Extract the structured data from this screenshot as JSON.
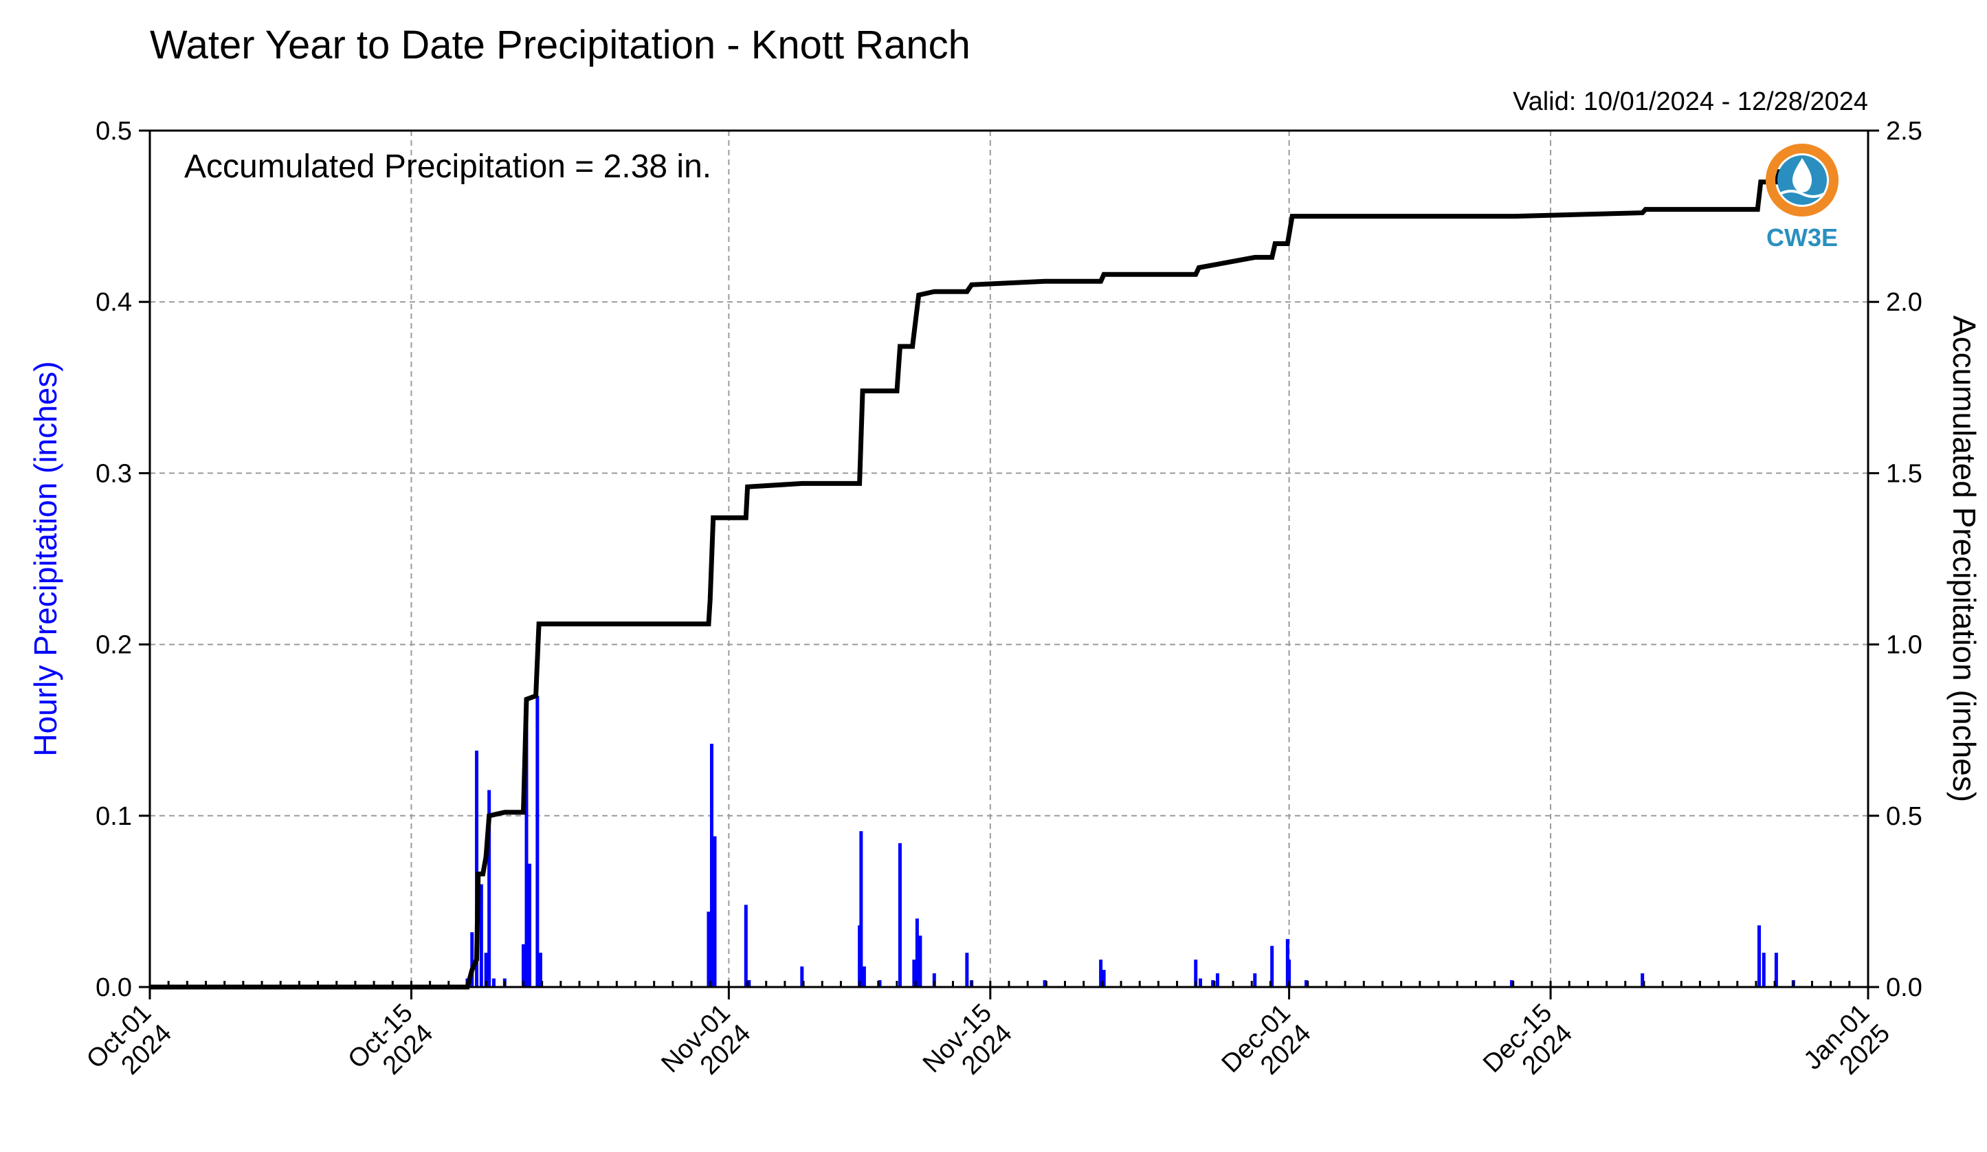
{
  "title": "Water Year to Date Precipitation - Knott Ranch",
  "valid": "Valid: 10/01/2024 - 12/28/2024",
  "annotation": "Accumulated Precipitation = 2.38 in.",
  "logo": {
    "text": "CW3E",
    "color": "#2a8fc0",
    "accent": "#f08a24"
  },
  "chart_data": {
    "type": "bar+line",
    "xlabel": "",
    "ylabel_left": "Hourly Precipitation (inches)",
    "ylabel_right": "Accumulated Precipitation (inches)",
    "xlim": [
      "2024-10-01",
      "2025-01-01"
    ],
    "ylim_left": [
      0,
      0.5
    ],
    "ylim_right": [
      0,
      2.5
    ],
    "grid": true,
    "left_ticks": [
      "0.0",
      "0.1",
      "0.2",
      "0.3",
      "0.4",
      "0.5"
    ],
    "right_ticks": [
      "0.0",
      "0.5",
      "1.0",
      "1.5",
      "2.0",
      "2.5"
    ],
    "x_ticks": [
      {
        "date": "2024-10-01",
        "label1": "Oct-01",
        "label2": "2024"
      },
      {
        "date": "2024-10-15",
        "label1": "Oct-15",
        "label2": "2024"
      },
      {
        "date": "2024-11-01",
        "label1": "Nov-01",
        "label2": "2024"
      },
      {
        "date": "2024-11-15",
        "label1": "Nov-15",
        "label2": "2024"
      },
      {
        "date": "2024-12-01",
        "label1": "Dec-01",
        "label2": "2024"
      },
      {
        "date": "2024-12-15",
        "label1": "Dec-15",
        "label2": "2024"
      },
      {
        "date": "2025-01-01",
        "label1": "Jan-01",
        "label2": "2025"
      }
    ],
    "hourly_series": {
      "name": "Hourly Precipitation",
      "color": "#0000ff",
      "points": [
        [
          "2024-10-18T00:00",
          0.005
        ],
        [
          "2024-10-18T06:00",
          0.032
        ],
        [
          "2024-10-18T12:00",
          0.138
        ],
        [
          "2024-10-18T18:00",
          0.06
        ],
        [
          "2024-10-19T00:00",
          0.02
        ],
        [
          "2024-10-19T04:00",
          0.115
        ],
        [
          "2024-10-19T10:00",
          0.005
        ],
        [
          "2024-10-20T00:00",
          0.005
        ],
        [
          "2024-10-21T00:00",
          0.025
        ],
        [
          "2024-10-21T04:00",
          0.16
        ],
        [
          "2024-10-21T08:00",
          0.072
        ],
        [
          "2024-10-21T18:00",
          0.17
        ],
        [
          "2024-10-21T22:00",
          0.02
        ],
        [
          "2024-10-30T22:00",
          0.044
        ],
        [
          "2024-10-31T02:00",
          0.142
        ],
        [
          "2024-10-31T06:00",
          0.088
        ],
        [
          "2024-11-01T22:00",
          0.048
        ],
        [
          "2024-11-02T02:00",
          0.004
        ],
        [
          "2024-11-04T22:00",
          0.012
        ],
        [
          "2024-11-08T00:00",
          0.036
        ],
        [
          "2024-11-08T02:00",
          0.091
        ],
        [
          "2024-11-08T06:00",
          0.012
        ],
        [
          "2024-11-09T02:00",
          0.004
        ],
        [
          "2024-11-10T04:00",
          0.084
        ],
        [
          "2024-11-10T22:00",
          0.016
        ],
        [
          "2024-11-11T02:00",
          0.04
        ],
        [
          "2024-11-11T06:00",
          0.03
        ],
        [
          "2024-11-12T00:00",
          0.008
        ],
        [
          "2024-11-13T18:00",
          0.02
        ],
        [
          "2024-11-14T00:00",
          0.004
        ],
        [
          "2024-11-17T22:00",
          0.004
        ],
        [
          "2024-11-20T22:00",
          0.016
        ],
        [
          "2024-11-21T02:00",
          0.01
        ],
        [
          "2024-11-26T00:00",
          0.016
        ],
        [
          "2024-11-26T06:00",
          0.005
        ],
        [
          "2024-11-26T22:00",
          0.004
        ],
        [
          "2024-11-27T04:00",
          0.008
        ],
        [
          "2024-11-29T04:00",
          0.008
        ],
        [
          "2024-11-30T02:00",
          0.024
        ],
        [
          "2024-11-30T22:00",
          0.028
        ],
        [
          "2024-12-01T00:00",
          0.016
        ],
        [
          "2024-12-01T22:00",
          0.004
        ],
        [
          "2024-12-12T22:00",
          0.004
        ],
        [
          "2024-12-19T22:00",
          0.008
        ],
        [
          "2024-12-26T04:00",
          0.036
        ],
        [
          "2024-12-26T10:00",
          0.02
        ],
        [
          "2024-12-27T02:00",
          0.02
        ],
        [
          "2024-12-28T00:00",
          0.004
        ]
      ]
    },
    "accumulated_series": {
      "name": "Accumulated Precipitation",
      "color": "#000000",
      "points": [
        [
          "2024-10-01T00:00",
          0.0
        ],
        [
          "2024-10-18T00:00",
          0.0
        ],
        [
          "2024-10-18T06:00",
          0.05
        ],
        [
          "2024-10-18T12:00",
          0.08
        ],
        [
          "2024-10-18T14:00",
          0.33
        ],
        [
          "2024-10-18T20:00",
          0.33
        ],
        [
          "2024-10-19T00:00",
          0.38
        ],
        [
          "2024-10-19T04:00",
          0.5
        ],
        [
          "2024-10-20T00:00",
          0.51
        ],
        [
          "2024-10-21T00:00",
          0.51
        ],
        [
          "2024-10-21T04:00",
          0.84
        ],
        [
          "2024-10-21T16:00",
          0.85
        ],
        [
          "2024-10-21T20:00",
          1.06
        ],
        [
          "2024-10-30T22:00",
          1.06
        ],
        [
          "2024-10-31T00:00",
          1.13
        ],
        [
          "2024-10-31T04:00",
          1.37
        ],
        [
          "2024-11-01T22:00",
          1.37
        ],
        [
          "2024-11-02T00:00",
          1.46
        ],
        [
          "2024-11-04T22:00",
          1.47
        ],
        [
          "2024-11-08T00:00",
          1.47
        ],
        [
          "2024-11-08T04:00",
          1.74
        ],
        [
          "2024-11-10T00:00",
          1.74
        ],
        [
          "2024-11-10T04:00",
          1.87
        ],
        [
          "2024-11-10T20:00",
          1.87
        ],
        [
          "2024-11-11T04:00",
          2.02
        ],
        [
          "2024-11-12T00:00",
          2.03
        ],
        [
          "2024-11-13T18:00",
          2.03
        ],
        [
          "2024-11-14T00:00",
          2.05
        ],
        [
          "2024-11-17T22:00",
          2.06
        ],
        [
          "2024-11-20T22:00",
          2.06
        ],
        [
          "2024-11-21T02:00",
          2.08
        ],
        [
          "2024-11-26T00:00",
          2.08
        ],
        [
          "2024-11-26T04:00",
          2.1
        ],
        [
          "2024-11-27T04:00",
          2.11
        ],
        [
          "2024-11-29T04:00",
          2.13
        ],
        [
          "2024-11-30T02:00",
          2.13
        ],
        [
          "2024-11-30T06:00",
          2.17
        ],
        [
          "2024-11-30T22:00",
          2.17
        ],
        [
          "2024-12-01T04:00",
          2.25
        ],
        [
          "2024-12-12T22:00",
          2.25
        ],
        [
          "2024-12-13T02:00",
          2.25
        ],
        [
          "2024-12-19T22:00",
          2.26
        ],
        [
          "2024-12-20T02:00",
          2.27
        ],
        [
          "2024-12-26T02:00",
          2.27
        ],
        [
          "2024-12-26T06:00",
          2.35
        ],
        [
          "2024-12-27T02:00",
          2.35
        ],
        [
          "2024-12-27T06:00",
          2.38
        ],
        [
          "2024-12-28T23:00",
          2.38
        ]
      ]
    }
  }
}
